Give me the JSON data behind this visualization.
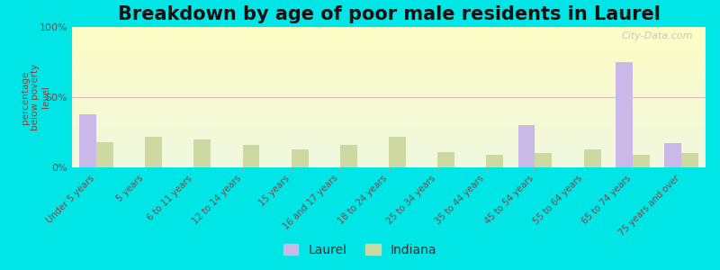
{
  "title": "Breakdown by age of poor male residents in Laurel",
  "ylabel": "percentage\nbelow poverty\nlevel",
  "categories": [
    "Under 5 years",
    "5 years",
    "6 to 11 years",
    "12 to 14 years",
    "15 years",
    "16 and 17 years",
    "18 to 24 years",
    "25 to 34 years",
    "35 to 44 years",
    "45 to 54 years",
    "55 to 64 years",
    "65 to 74 years",
    "75 years and over"
  ],
  "laurel_values": [
    38,
    0,
    0,
    0,
    0,
    0,
    0,
    0,
    0,
    30,
    0,
    75,
    17
  ],
  "indiana_values": [
    18,
    22,
    20,
    16,
    13,
    16,
    22,
    11,
    9,
    10,
    13,
    9,
    10
  ],
  "laurel_color": "#c9b8e8",
  "indiana_color": "#cdd9a0",
  "background_color": "#00e5e5",
  "ylim": [
    0,
    100
  ],
  "yticks": [
    0,
    50,
    100
  ],
  "ytick_labels": [
    "0%",
    "50%",
    "100%"
  ],
  "title_fontsize": 15,
  "bar_width": 0.35,
  "watermark": "City-Data.com"
}
